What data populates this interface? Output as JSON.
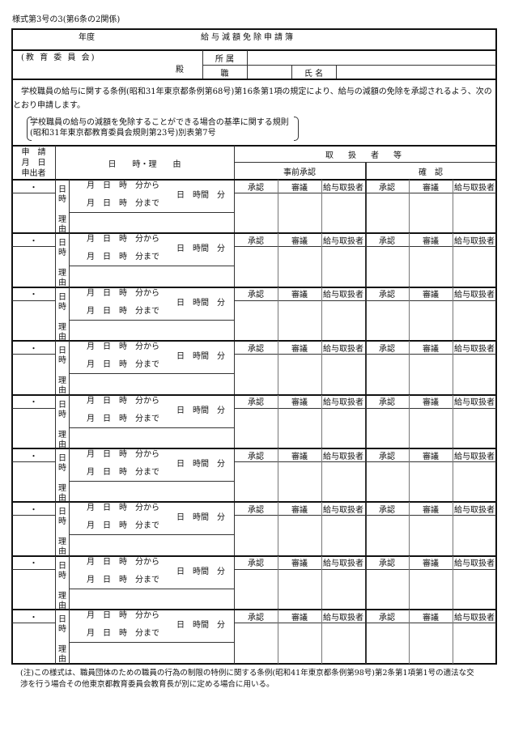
{
  "form_number": "様式第3号の3(第6条の2関係)",
  "header": {
    "year_label": "年度",
    "title": "給与減額免除申請簿",
    "addressee": "(教 育 委 員 会)",
    "honorific": "殿",
    "affiliation_label": "所 属",
    "affiliation_value": "",
    "position_label": "職",
    "position_value": "",
    "name_label": "氏 名",
    "name_value": ""
  },
  "statement": {
    "text": "学校職員の給与に関する条例(昭和31年東京都条例第68号)第16条第1項の規定により、給与の減額の免除を承認されるよう、次のとおり申請します。",
    "reference_line1": "学校職員の給与の減額を免除することができる場合の基準に関する規則",
    "reference_line2": "(昭和31年東京都教育委員会規則第23号)別表第7号"
  },
  "table_header": {
    "applicant_col": [
      "申　請",
      "月　日",
      "申出者"
    ],
    "datetime_reason": "日　　時・理　　由",
    "handlers": "取　扱　者　等",
    "prior_approval": "事前承認",
    "confirmation": "確　認"
  },
  "row_labels": {
    "date_dot": "・",
    "datetime": "日時",
    "reason": "理由",
    "from": "月　日　時　分から",
    "to": "月　日　時　分まで",
    "duration": "日　時間　分",
    "handler_cols": [
      "承認",
      "審議",
      "給与取扱者",
      "承認",
      "審議",
      "給与取扱者"
    ]
  },
  "entries": [
    {
      "reason": ""
    },
    {
      "reason": ""
    },
    {
      "reason": ""
    },
    {
      "reason": ""
    },
    {
      "reason": ""
    },
    {
      "reason": ""
    },
    {
      "reason": ""
    },
    {
      "reason": ""
    },
    {
      "reason": ""
    }
  ],
  "footnote": {
    "line1": "(注)この様式は、職員団体のための職員の行為の制限の特例に関する条例(昭和41年東京都条例第98号)第2条第1項第1号の適法な交",
    "line2": "渉を行う場合その他東京都教育委員会教育長が別に定める場合に用いる。"
  }
}
